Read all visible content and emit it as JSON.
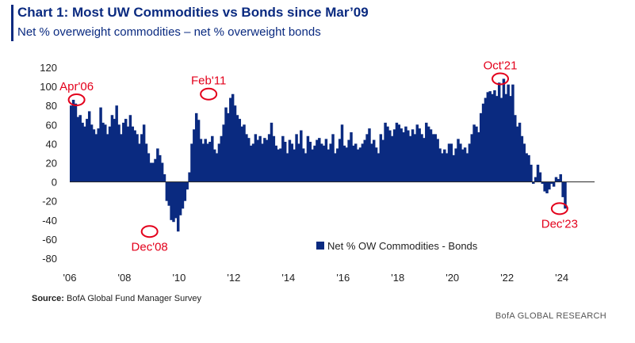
{
  "header": {
    "title": "Chart 1: Most UW Commodities vs Bonds since Mar’09",
    "subtitle": "Net % overweight commodities – net % overweight bonds"
  },
  "footer": {
    "source_label": "Source:",
    "source_text": "BofA Global Fund Manager Survey",
    "branding": "BofA GLOBAL RESEARCH"
  },
  "colors": {
    "bar": "#0a2a80",
    "annotation": "#e3001b",
    "title": "#0a2a80"
  },
  "chart_data": {
    "type": "bar",
    "title": "Chart 1: Most UW Commodities vs Bonds since Mar’09",
    "subtitle": "Net % overweight commodities – net % overweight bonds",
    "xlabel": "",
    "ylabel": "",
    "ylim": [
      -80,
      120
    ],
    "yticks": [
      "120",
      "100",
      "80",
      "60",
      "40",
      "20",
      "0",
      "-20",
      "-40",
      "-60",
      "-80"
    ],
    "ytick_values": [
      120,
      100,
      80,
      60,
      40,
      20,
      0,
      -20,
      -40,
      -60,
      -80
    ],
    "xlim": [
      2006.0,
      2025.2
    ],
    "xticks": [
      "'06",
      "'08",
      "'10",
      "'12",
      "'14",
      "'16",
      "'18",
      "'20",
      "'22",
      "'24"
    ],
    "xtick_values": [
      2006,
      2008,
      2010,
      2012,
      2014,
      2016,
      2018,
      2020,
      2022,
      2024
    ],
    "legend": {
      "label": "Net % OW Commodities - Bonds",
      "position": "bottom-right"
    },
    "series": [
      {
        "name": "Net % OW Commodities - Bonds",
        "start": 2006.0,
        "step": 0.0833,
        "values": [
          80,
          86,
          82,
          68,
          70,
          62,
          58,
          66,
          74,
          60,
          55,
          50,
          56,
          78,
          62,
          60,
          50,
          58,
          70,
          66,
          80,
          60,
          50,
          62,
          66,
          58,
          70,
          58,
          54,
          50,
          40,
          50,
          60,
          40,
          30,
          20,
          20,
          24,
          35,
          28,
          20,
          8,
          -20,
          -25,
          -40,
          -42,
          -38,
          -52,
          -35,
          -28,
          -20,
          -8,
          10,
          40,
          55,
          72,
          65,
          45,
          40,
          45,
          40,
          42,
          48,
          34,
          30,
          40,
          48,
          60,
          78,
          72,
          88,
          92,
          80,
          70,
          66,
          58,
          60,
          50,
          46,
          38,
          40,
          50,
          44,
          48,
          40,
          46,
          44,
          50,
          62,
          48,
          38,
          34,
          35,
          48,
          42,
          30,
          44,
          40,
          34,
          50,
          40,
          54,
          35,
          30,
          48,
          42,
          34,
          38,
          44,
          46,
          40,
          38,
          45,
          34,
          40,
          50,
          30,
          35,
          45,
          60,
          38,
          36,
          44,
          52,
          38,
          40,
          34,
          36,
          40,
          44,
          50,
          56,
          40,
          44,
          36,
          30,
          50,
          44,
          62,
          58,
          54,
          48,
          55,
          62,
          60,
          56,
          52,
          58,
          54,
          48,
          55,
          50,
          60,
          56,
          50,
          46,
          62,
          58,
          55,
          50,
          50,
          45,
          35,
          30,
          34,
          30,
          40,
          40,
          28,
          35,
          45,
          40,
          34,
          36,
          30,
          40,
          50,
          60,
          58,
          52,
          72,
          82,
          88,
          94,
          95,
          92,
          96,
          90,
          104,
          88,
          108,
          92,
          102,
          90,
          102,
          70,
          58,
          62,
          48,
          40,
          30,
          28,
          18,
          -2,
          5,
          18,
          10,
          -2,
          -10,
          -12,
          -8,
          -2,
          -5,
          5,
          3,
          8,
          -16,
          -28
        ]
      }
    ],
    "annotations": [
      {
        "label": "Apr'06",
        "x": 2006.25,
        "y": 86
      },
      {
        "label": "Dec'08",
        "x": 2008.92,
        "y": -52
      },
      {
        "label": "Feb'11",
        "x": 2011.08,
        "y": 92
      },
      {
        "label": "Oct'21",
        "x": 2021.75,
        "y": 108
      },
      {
        "label": "Dec'23",
        "x": 2023.92,
        "y": -28
      }
    ]
  }
}
